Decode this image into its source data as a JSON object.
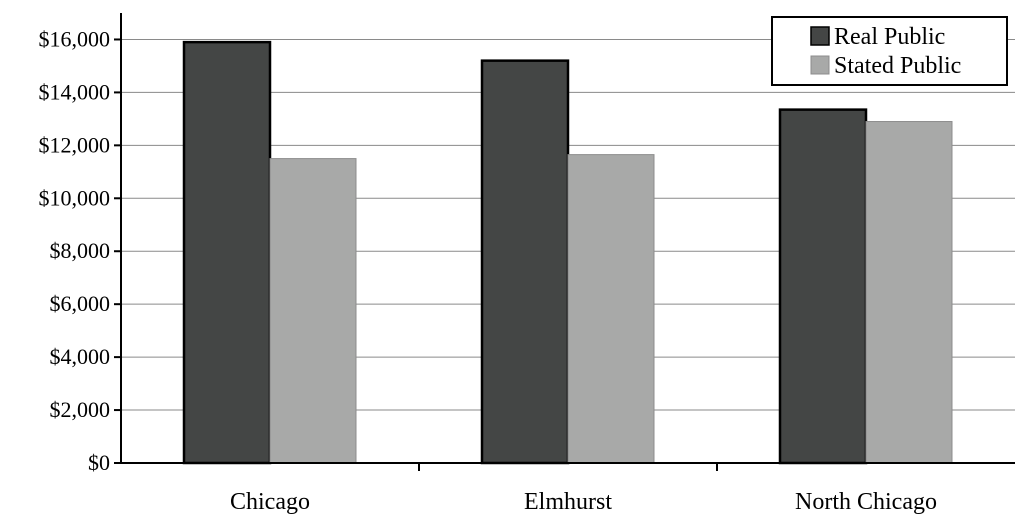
{
  "chart_data": {
    "type": "bar",
    "title": "",
    "xlabel": "",
    "ylabel": "",
    "categories": [
      "Chicago",
      "Elmhurst",
      "North Chicago"
    ],
    "series": [
      {
        "name": "Real Public",
        "values": [
          15900,
          15200,
          13350
        ],
        "color": "#444645",
        "outlined": true
      },
      {
        "name": "Stated Public",
        "values": [
          11500,
          11650,
          12900
        ],
        "color": "#a8a9a8",
        "outlined": false
      }
    ],
    "ylim": [
      0,
      17000
    ],
    "yticks": [
      0,
      2000,
      4000,
      6000,
      8000,
      10000,
      12000,
      14000,
      16000
    ],
    "ytick_labels": [
      "$0",
      "$2,000",
      "$4,000",
      "$6,000",
      "$8,000",
      "$10,000",
      "$12,000",
      "$14,000",
      "$16,000"
    ],
    "grid": true,
    "legend_position": "top-right"
  }
}
